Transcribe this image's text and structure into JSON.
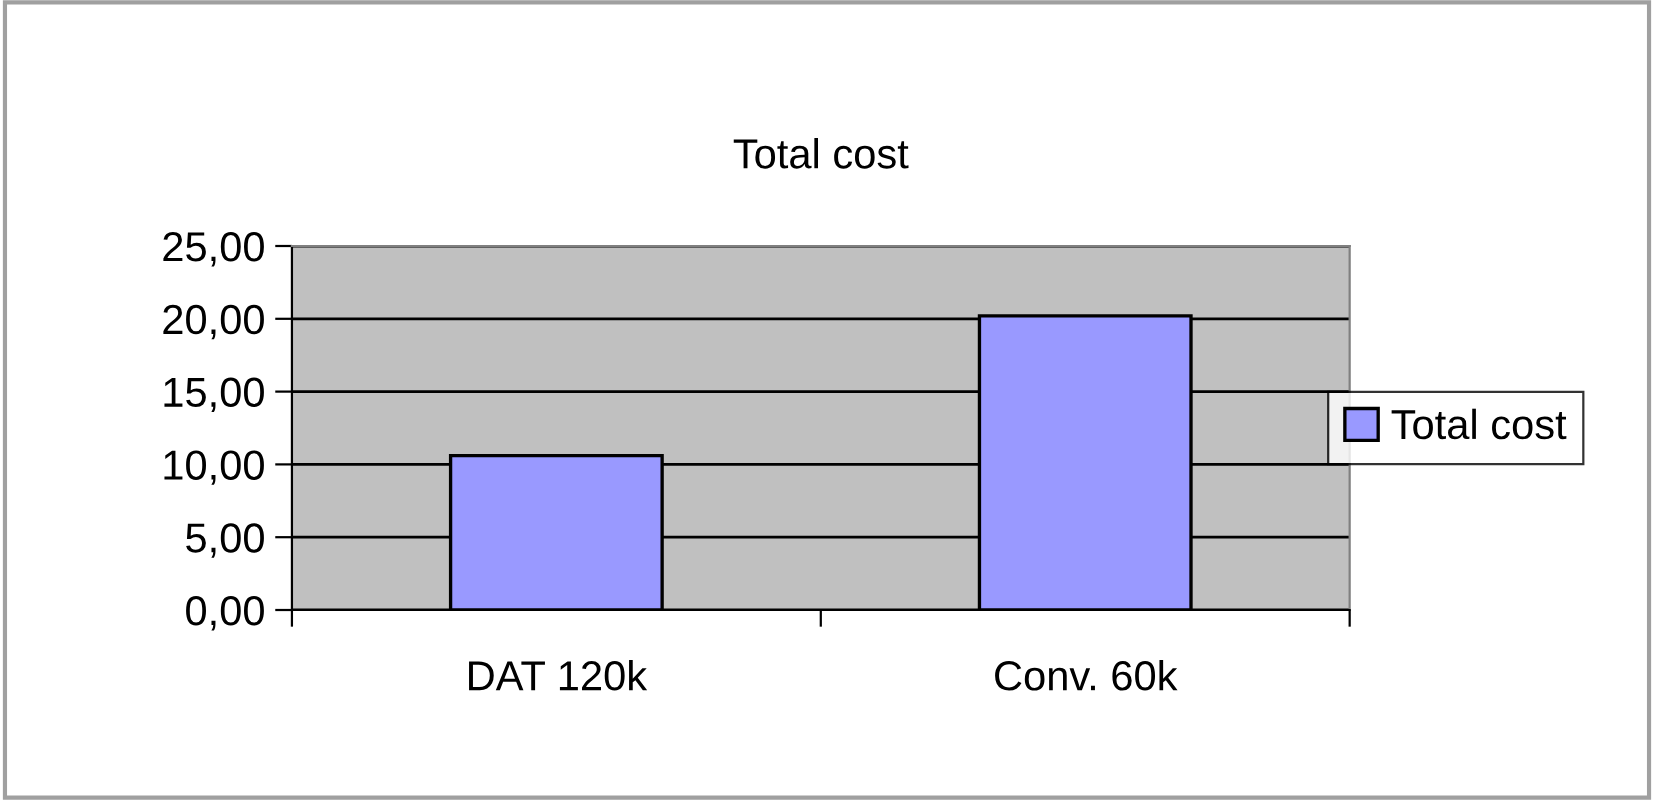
{
  "chart_data": {
    "type": "bar",
    "title": "Total cost",
    "categories": [
      "DAT 120k",
      "Conv. 60k"
    ],
    "series": [
      {
        "name": "Total cost",
        "color": "#9999ff",
        "values": [
          10.6,
          20.2
        ]
      }
    ],
    "ylim": [
      0,
      25
    ],
    "yticks": [
      {
        "value": 0,
        "label": "0,00"
      },
      {
        "value": 5,
        "label": "5,00"
      },
      {
        "value": 10,
        "label": "10,00"
      },
      {
        "value": 15,
        "label": "15,00"
      },
      {
        "value": 20,
        "label": "20,00"
      },
      {
        "value": 25,
        "label": "25,00"
      }
    ],
    "grid": "y",
    "legend": "right"
  }
}
